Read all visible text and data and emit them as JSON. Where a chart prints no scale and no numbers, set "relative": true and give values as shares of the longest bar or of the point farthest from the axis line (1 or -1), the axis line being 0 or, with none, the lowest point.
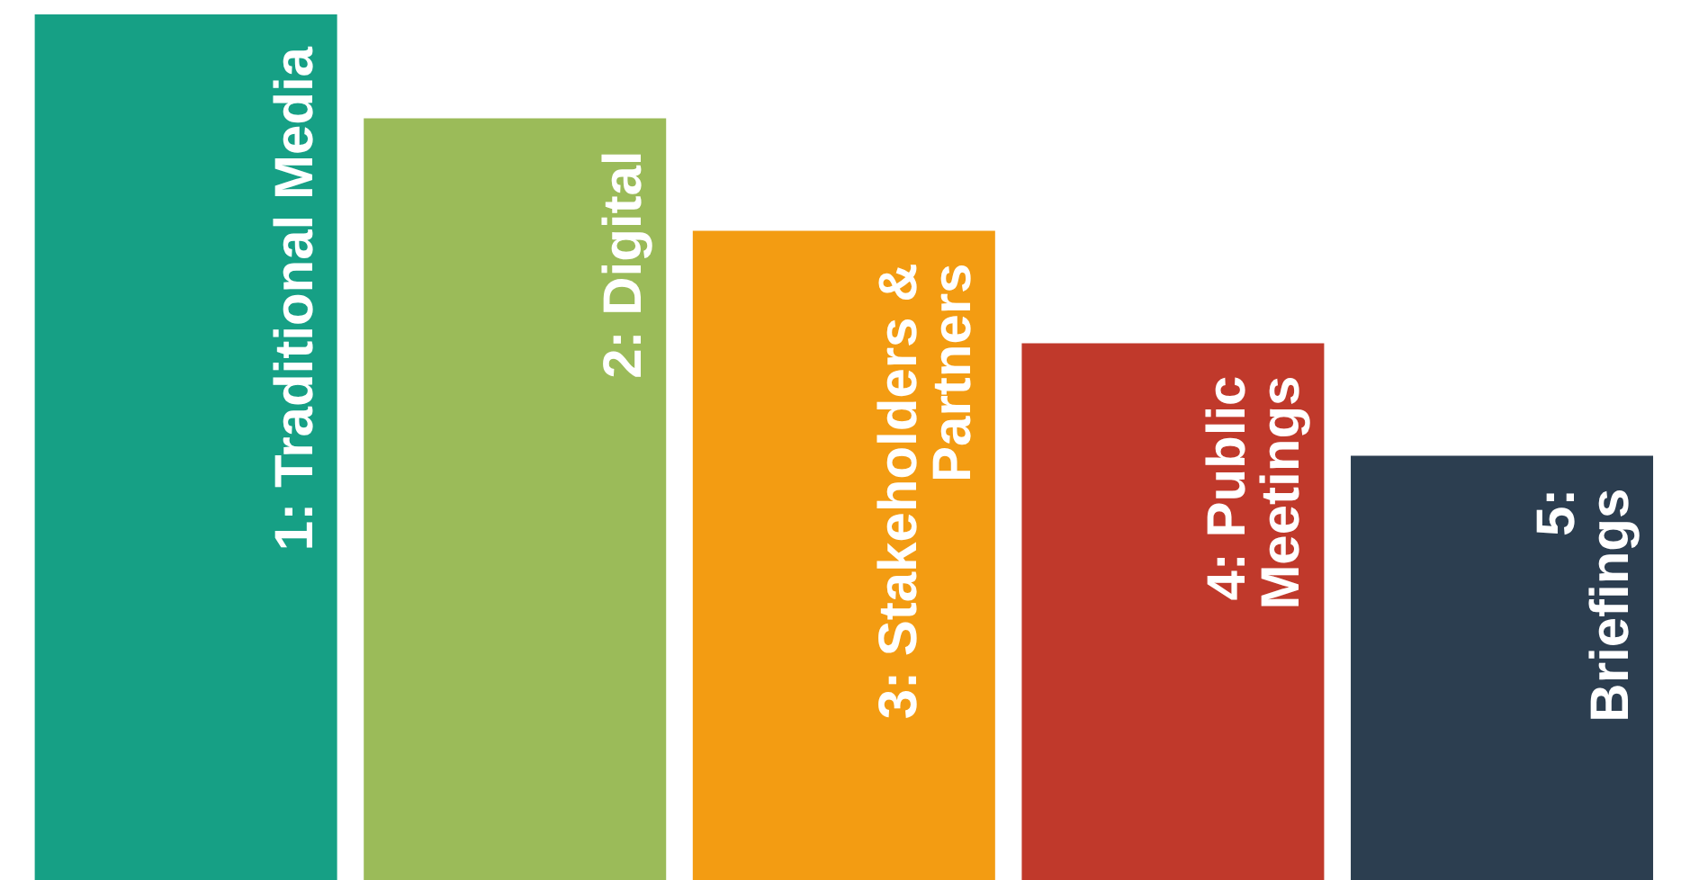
{
  "chart_data": {
    "type": "bar",
    "relative": true,
    "categories": [
      "1: Traditional Media",
      "2: Digital",
      "3: Stakeholders & Partners",
      "4: Public Meetings",
      "5: Briefings"
    ],
    "values": [
      1,
      0.88,
      0.75,
      0.62,
      0.49
    ],
    "colors": [
      "#16a085",
      "#9bbb59",
      "#f39c12",
      "#c0392b",
      "#2c3e50"
    ]
  }
}
